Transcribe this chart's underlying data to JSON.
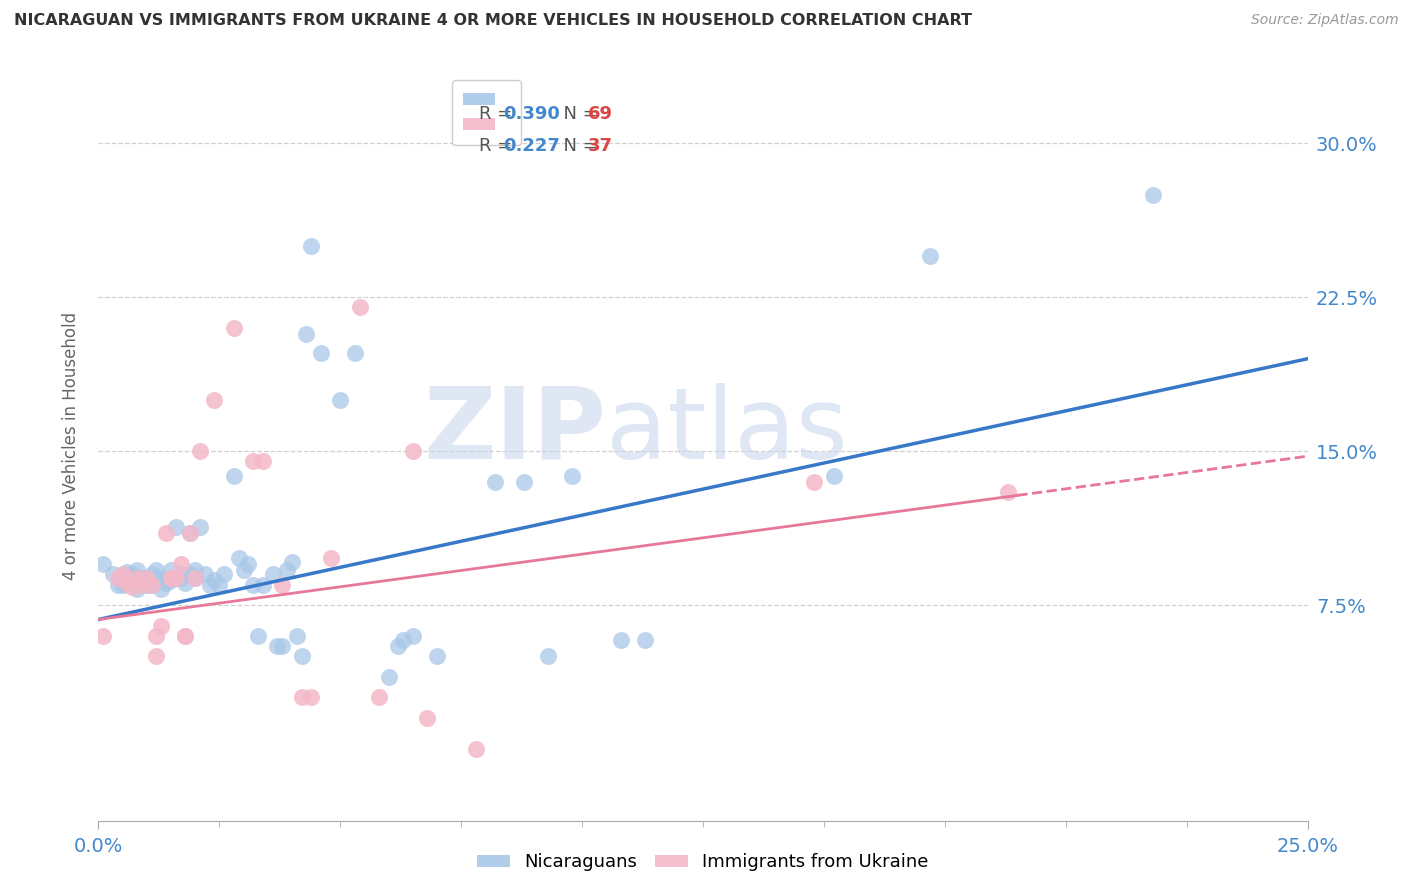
{
  "title": "NICARAGUAN VS IMMIGRANTS FROM UKRAINE 4 OR MORE VEHICLES IN HOUSEHOLD CORRELATION CHART",
  "source": "Source: ZipAtlas.com",
  "ylabel": "4 or more Vehicles in Household",
  "ytick_labels": [
    "30.0%",
    "22.5%",
    "15.0%",
    "7.5%"
  ],
  "ytick_values": [
    0.3,
    0.225,
    0.15,
    0.075
  ],
  "xlim": [
    0.0,
    0.25
  ],
  "ylim": [
    -0.03,
    0.335
  ],
  "legend_entries": [
    {
      "label": "R = 0.390   N = 69",
      "color": "#a8c8e8"
    },
    {
      "label": "R = 0.227   N = 37",
      "color": "#f4b8c8"
    }
  ],
  "blue_scatter": [
    [
      0.001,
      0.095
    ],
    [
      0.003,
      0.09
    ],
    [
      0.004,
      0.085
    ],
    [
      0.005,
      0.09
    ],
    [
      0.005,
      0.085
    ],
    [
      0.006,
      0.091
    ],
    [
      0.007,
      0.088
    ],
    [
      0.007,
      0.09
    ],
    [
      0.008,
      0.083
    ],
    [
      0.008,
      0.092
    ],
    [
      0.009,
      0.088
    ],
    [
      0.01,
      0.088
    ],
    [
      0.01,
      0.085
    ],
    [
      0.011,
      0.09
    ],
    [
      0.011,
      0.085
    ],
    [
      0.012,
      0.088
    ],
    [
      0.012,
      0.092
    ],
    [
      0.013,
      0.088
    ],
    [
      0.013,
      0.083
    ],
    [
      0.014,
      0.086
    ],
    [
      0.015,
      0.092
    ],
    [
      0.015,
      0.087
    ],
    [
      0.016,
      0.113
    ],
    [
      0.017,
      0.088
    ],
    [
      0.017,
      0.09
    ],
    [
      0.018,
      0.086
    ],
    [
      0.019,
      0.09
    ],
    [
      0.019,
      0.11
    ],
    [
      0.02,
      0.088
    ],
    [
      0.02,
      0.092
    ],
    [
      0.021,
      0.113
    ],
    [
      0.022,
      0.09
    ],
    [
      0.023,
      0.085
    ],
    [
      0.024,
      0.087
    ],
    [
      0.025,
      0.085
    ],
    [
      0.026,
      0.09
    ],
    [
      0.028,
      0.138
    ],
    [
      0.029,
      0.098
    ],
    [
      0.03,
      0.092
    ],
    [
      0.031,
      0.095
    ],
    [
      0.032,
      0.085
    ],
    [
      0.033,
      0.06
    ],
    [
      0.034,
      0.085
    ],
    [
      0.036,
      0.09
    ],
    [
      0.037,
      0.055
    ],
    [
      0.038,
      0.055
    ],
    [
      0.039,
      0.092
    ],
    [
      0.04,
      0.096
    ],
    [
      0.041,
      0.06
    ],
    [
      0.042,
      0.05
    ],
    [
      0.043,
      0.207
    ],
    [
      0.044,
      0.25
    ],
    [
      0.046,
      0.198
    ],
    [
      0.05,
      0.175
    ],
    [
      0.053,
      0.198
    ],
    [
      0.06,
      0.04
    ],
    [
      0.062,
      0.055
    ],
    [
      0.063,
      0.058
    ],
    [
      0.065,
      0.06
    ],
    [
      0.07,
      0.05
    ],
    [
      0.082,
      0.135
    ],
    [
      0.088,
      0.135
    ],
    [
      0.093,
      0.05
    ],
    [
      0.098,
      0.138
    ],
    [
      0.108,
      0.058
    ],
    [
      0.113,
      0.058
    ],
    [
      0.152,
      0.138
    ],
    [
      0.172,
      0.245
    ],
    [
      0.218,
      0.275
    ]
  ],
  "pink_scatter": [
    [
      0.001,
      0.06
    ],
    [
      0.004,
      0.088
    ],
    [
      0.005,
      0.09
    ],
    [
      0.006,
      0.086
    ],
    [
      0.007,
      0.084
    ],
    [
      0.008,
      0.088
    ],
    [
      0.009,
      0.085
    ],
    [
      0.01,
      0.088
    ],
    [
      0.011,
      0.085
    ],
    [
      0.012,
      0.05
    ],
    [
      0.012,
      0.06
    ],
    [
      0.013,
      0.065
    ],
    [
      0.014,
      0.11
    ],
    [
      0.015,
      0.088
    ],
    [
      0.015,
      0.088
    ],
    [
      0.016,
      0.088
    ],
    [
      0.017,
      0.095
    ],
    [
      0.018,
      0.06
    ],
    [
      0.018,
      0.06
    ],
    [
      0.019,
      0.11
    ],
    [
      0.02,
      0.088
    ],
    [
      0.021,
      0.15
    ],
    [
      0.024,
      0.175
    ],
    [
      0.028,
      0.21
    ],
    [
      0.032,
      0.145
    ],
    [
      0.034,
      0.145
    ],
    [
      0.038,
      0.085
    ],
    [
      0.042,
      0.03
    ],
    [
      0.044,
      0.03
    ],
    [
      0.048,
      0.098
    ],
    [
      0.054,
      0.22
    ],
    [
      0.058,
      0.03
    ],
    [
      0.065,
      0.15
    ],
    [
      0.068,
      0.02
    ],
    [
      0.078,
      0.005
    ],
    [
      0.148,
      0.135
    ],
    [
      0.188,
      0.13
    ]
  ],
  "blue_line_x": [
    0.0,
    0.25
  ],
  "blue_line_y_start": 0.068,
  "blue_line_y_end": 0.195,
  "pink_line_x": [
    0.0,
    0.22
  ],
  "pink_line_y_start": 0.068,
  "pink_line_y_end": 0.138,
  "blue_color": "#a8c8e8",
  "pink_color": "#f4b8c8",
  "blue_line_color": "#3878c8",
  "pink_line_color": "#e87898",
  "watermark_zip": "ZIP",
  "watermark_atlas": "atlas",
  "background_color": "#ffffff",
  "grid_color": "#d0d0d0",
  "title_color": "#333333",
  "axis_label_color": "#666666",
  "tick_color": "#4488cc",
  "legend_text_color": "#555555",
  "legend_r_color": "#4488cc",
  "legend_n_color": "#dd4444"
}
